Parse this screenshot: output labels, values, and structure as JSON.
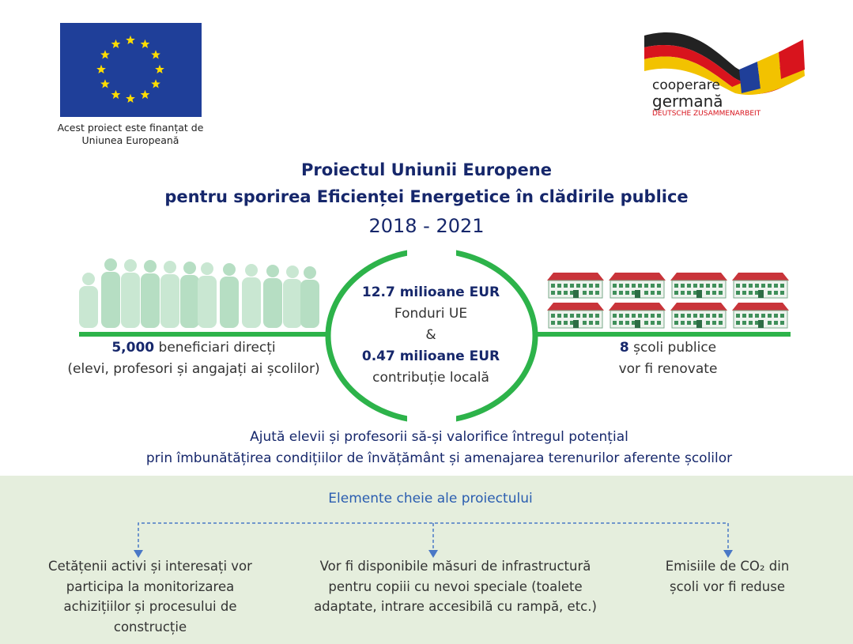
{
  "eu_logo": {
    "caption": [
      "Acest proiect este finanțat de",
      "Uniunea Europeană"
    ]
  },
  "partner_logo": {
    "line1": "cooperare",
    "line2": "germană",
    "line3": "DEUTSCHE ZUSAMMENARBEIT"
  },
  "header": {
    "title": [
      "Proiectul Uniunii Europene",
      "pentru sporirea Eficienței Energetice în clădirile publice"
    ],
    "period": "2018 - 2021"
  },
  "funding": {
    "eu_amount": "12.7 milioane EUR",
    "eu_label": "Fonduri UE",
    "joiner": "&",
    "local_amount": "0.47 milioane EUR",
    "local_label": "contribuție locală"
  },
  "beneficiaries": {
    "number": "5,000",
    "text": "beneficiari direcți",
    "note": "(elevi, profesori și angajați ai școlilor)"
  },
  "schools": {
    "number": "8",
    "text": "școli publice",
    "note": "vor fi renovate"
  },
  "goal": [
    "Ajută elevii și profesorii să-și valorifice întregul potențial",
    "prin îmbunătățirea condițiilor de învățământ și amenajarea terenurilor aferente școlilor"
  ],
  "key_elements": {
    "title": "Elemente cheie ale proiectului",
    "items": [
      [
        "Cetățenii activi și interesați vor",
        "participa la monitorizarea",
        "achizițiilor și procesului de",
        "construcție"
      ],
      [
        "Vor fi disponibile măsuri de infrastructură",
        "pentru copiii cu nevoi speciale (toalete",
        "adaptate, intrare accesibilă cu rampă, etc.)"
      ],
      [
        "Emisiile de CO₂ din",
        "școli vor fi reduse"
      ]
    ]
  }
}
